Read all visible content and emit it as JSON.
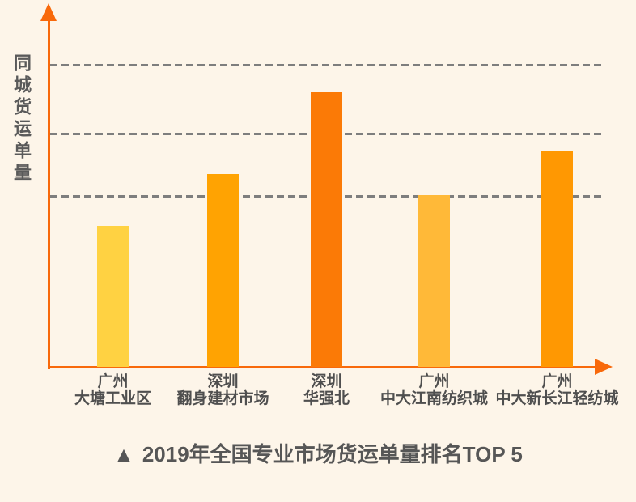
{
  "page": {
    "background_color": "#FDF5E9"
  },
  "axes": {
    "color": "#F8690B",
    "y_axis_label": "同城货运单量",
    "gridline_color": "#7E7E7E",
    "gridline_style": "dashed"
  },
  "chart_data": {
    "type": "bar",
    "title": "2019年全国专业市场货运单量排名TOP 5",
    "ylabel": "同城货运单量",
    "xlabel": "",
    "value_unit": "relative index (no numeric tick labels shown; tallest bar = 100)",
    "categories": [
      "广州 大塘工业区",
      "深圳 翻身建材市场",
      "深圳 华强北",
      "广州 中大江南纺织城",
      "广州 中大新长江轻纺城"
    ],
    "category_lines": [
      [
        "广州",
        "大塘工业区"
      ],
      [
        "深圳",
        "翻身建材市场"
      ],
      [
        "深圳",
        "华强北"
      ],
      [
        "广州",
        "中大江南纺织城"
      ],
      [
        "广州",
        "中大新长江轻纺城"
      ]
    ],
    "values": [
      51.3,
      70.2,
      100,
      62.5,
      78.8
    ],
    "bar_colors": [
      "#FFD242",
      "#FFA302",
      "#FB7A06",
      "#FFB938",
      "#FF9802"
    ],
    "ylim": [
      0,
      110.3
    ],
    "gridlines_at": [
      62.5,
      85.2,
      110.3
    ],
    "legend": "none",
    "grid": "horizontal dashed lines"
  },
  "caption": {
    "marker_icon": "▲",
    "text": "2019年全国专业市场货运单量排名TOP 5"
  }
}
